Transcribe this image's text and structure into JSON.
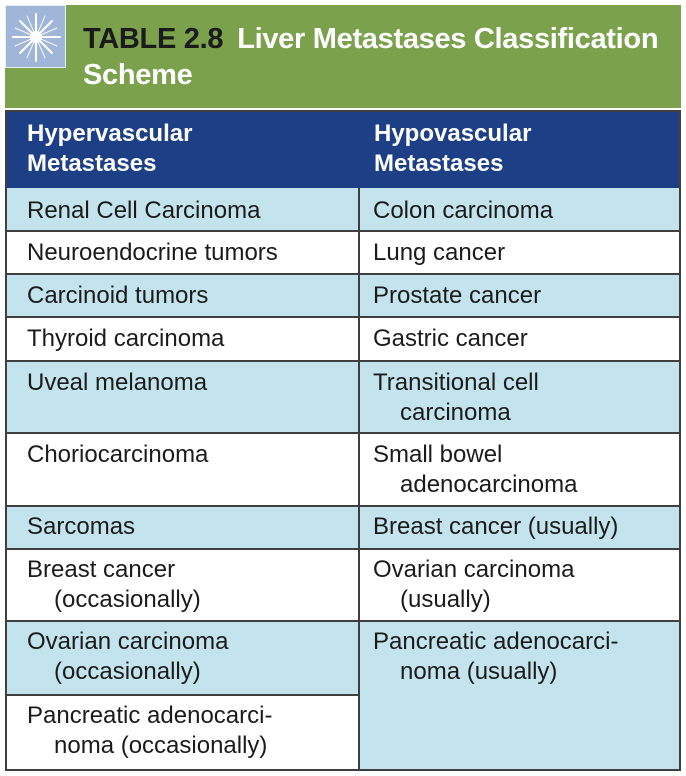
{
  "title": {
    "number": "TABLE 2.8",
    "text_line1": "Liver Metastases Classification",
    "text_line2": "Scheme"
  },
  "columns": [
    "Hypervascular",
    "Metastases",
    "Hypovascular",
    "Metastases"
  ],
  "headers": {
    "left_1": "Hypervascular",
    "left_2": "Metastases",
    "right_1": "Hypovascular",
    "right_2": "Metastases"
  },
  "rows": [
    {
      "left": [
        "Renal Cell Carcinoma"
      ],
      "right": [
        "Colon carcinoma"
      ]
    },
    {
      "left": [
        "Neuroendocrine tumors"
      ],
      "right": [
        "Lung cancer"
      ]
    },
    {
      "left": [
        "Carcinoid tumors"
      ],
      "right": [
        "Prostate cancer"
      ]
    },
    {
      "left": [
        "Thyroid carcinoma"
      ],
      "right": [
        "Gastric cancer"
      ]
    },
    {
      "left": [
        "Uveal melanoma"
      ],
      "right": [
        "Transitional cell",
        "carcinoma"
      ]
    },
    {
      "left": [
        "Choriocarcinoma"
      ],
      "right": [
        "Small bowel",
        "adenocarcinoma"
      ]
    },
    {
      "left": [
        "Sarcomas"
      ],
      "right": [
        "Breast cancer (usually)"
      ]
    },
    {
      "left": [
        "Breast cancer",
        "(occasionally)"
      ],
      "right": [
        "Ovarian carcinoma",
        "(usually)"
      ]
    },
    {
      "left": [
        "Ovarian carcinoma",
        "(occasionally)"
      ],
      "right": [
        "Pancreatic adenocarci-",
        "noma (usually)"
      ]
    },
    {
      "left": [
        "Pancreatic adenocarci-",
        "noma (occasionally)"
      ],
      "right": []
    }
  ],
  "colors": {
    "header_green": "#7ba14d",
    "column_head_blue": "#1c3f86",
    "row_blue": "#c3e3ed",
    "row_white": "#ffffff"
  },
  "icons": {
    "badge": "star-burst-icon"
  }
}
